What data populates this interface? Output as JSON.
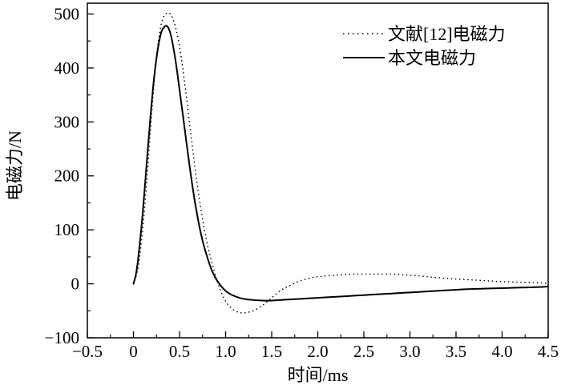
{
  "chart_data": {
    "type": "line",
    "title": "",
    "xlabel": "时间/ms",
    "ylabel": "电磁力/N",
    "xlim": [
      -0.5,
      4.5
    ],
    "ylim": [
      -100,
      520
    ],
    "xticks": [
      -0.5,
      0.0,
      0.5,
      1.0,
      1.5,
      2.0,
      2.5,
      3.0,
      3.5,
      4.0,
      4.5
    ],
    "xtick_labels": [
      "−0.5",
      "0",
      "0.5",
      "1.0",
      "1.5",
      "2.0",
      "2.5",
      "3.0",
      "3.5",
      "4.0",
      "4.5"
    ],
    "yticks": [
      -100,
      0,
      100,
      200,
      300,
      400,
      500
    ],
    "ytick_labels": [
      "−100",
      "0",
      "100",
      "200",
      "300",
      "400",
      "500"
    ],
    "grid": false,
    "legend_position": "top-right",
    "series": [
      {
        "name": "文献[12]电磁力",
        "style": "dotted",
        "color": "#000000",
        "x": [
          0.0,
          0.05,
          0.1,
          0.15,
          0.2,
          0.25,
          0.3,
          0.35,
          0.4,
          0.45,
          0.5,
          0.55,
          0.6,
          0.65,
          0.7,
          0.75,
          0.8,
          0.85,
          0.9,
          0.95,
          1.0,
          1.05,
          1.1,
          1.15,
          1.2,
          1.3,
          1.4,
          1.5,
          1.6,
          1.7,
          1.8,
          1.9,
          2.0,
          2.2,
          2.4,
          2.6,
          2.8,
          3.0,
          3.2,
          3.4,
          3.6,
          3.8,
          4.0,
          4.2,
          4.4,
          4.5
        ],
        "y": [
          0,
          30,
          100,
          200,
          320,
          420,
          480,
          500,
          500,
          480,
          440,
          380,
          310,
          240,
          175,
          120,
          75,
          40,
          10,
          -15,
          -32,
          -43,
          -50,
          -53,
          -54,
          -50,
          -40,
          -26,
          -12,
          -3,
          5,
          10,
          13,
          16,
          18,
          18,
          18,
          16,
          13,
          10,
          8,
          6,
          4,
          3,
          2,
          1
        ]
      },
      {
        "name": "本文电磁力",
        "style": "solid",
        "color": "#000000",
        "x": [
          0.0,
          0.03,
          0.06,
          0.1,
          0.14,
          0.18,
          0.22,
          0.26,
          0.3,
          0.33,
          0.36,
          0.39,
          0.42,
          0.46,
          0.5,
          0.55,
          0.6,
          0.65,
          0.7,
          0.75,
          0.8,
          0.85,
          0.9,
          0.95,
          1.0,
          1.05,
          1.1,
          1.15,
          1.2,
          1.3,
          1.4,
          1.5,
          1.6,
          1.8,
          2.0,
          2.2,
          2.4,
          2.6,
          2.8,
          3.0,
          3.2,
          3.4,
          3.6,
          3.8,
          4.0,
          4.2,
          4.4,
          4.5
        ],
        "y": [
          0,
          20,
          60,
          130,
          215,
          300,
          375,
          430,
          465,
          475,
          478,
          470,
          450,
          410,
          360,
          295,
          230,
          170,
          120,
          80,
          50,
          25,
          8,
          -4,
          -13,
          -19,
          -23,
          -26,
          -28,
          -30,
          -31,
          -31,
          -30,
          -28,
          -26,
          -24,
          -22,
          -20,
          -18,
          -16,
          -14,
          -12,
          -10,
          -9,
          -8,
          -7,
          -6,
          -5
        ]
      }
    ]
  }
}
